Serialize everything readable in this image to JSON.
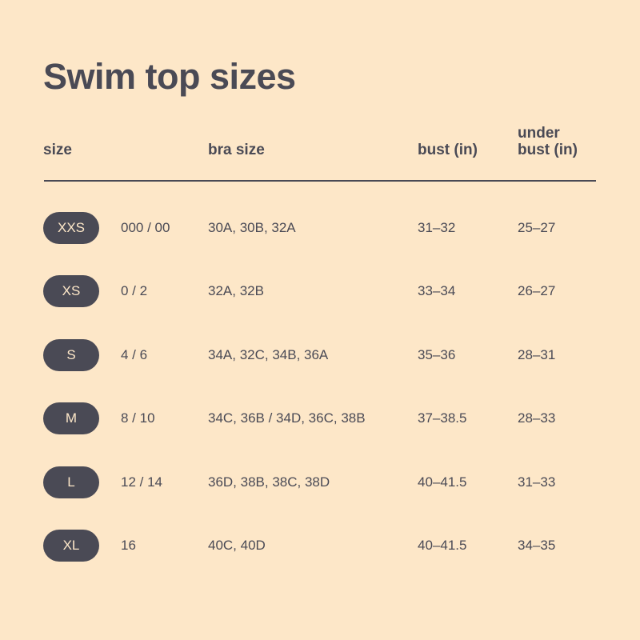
{
  "title": "Swim top sizes",
  "headers": {
    "size": "size",
    "bra_size": "bra size",
    "bust": "bust (in)",
    "under_bust_1": "under",
    "under_bust_2": "bust (in)"
  },
  "rows": [
    {
      "size": "XXS",
      "numeric": "000 / 00",
      "bra": "30A, 30B, 32A",
      "bust": "31–32",
      "under_bust": "25–27"
    },
    {
      "size": "XS",
      "numeric": "0 / 2",
      "bra": "32A, 32B",
      "bust": "33–34",
      "under_bust": "26–27"
    },
    {
      "size": "S",
      "numeric": "4 / 6",
      "bra": "34A, 32C, 34B, 36A",
      "bust": "35–36",
      "under_bust": "28–31"
    },
    {
      "size": "M",
      "numeric": "8 / 10",
      "bra": "34C, 36B / 34D, 36C, 38B",
      "bust": "37–38.5",
      "under_bust": "28–33"
    },
    {
      "size": "L",
      "numeric": "12 / 14",
      "bra": "36D, 38B, 38C, 38D",
      "bust": "40–41.5",
      "under_bust": "31–33"
    },
    {
      "size": "XL",
      "numeric": "16",
      "bra": "40C, 40D",
      "bust": "40–41.5",
      "under_bust": "34–35"
    }
  ],
  "colors": {
    "background": "#fde7c8",
    "text": "#4a4a55",
    "pill": "#4a4a55"
  }
}
